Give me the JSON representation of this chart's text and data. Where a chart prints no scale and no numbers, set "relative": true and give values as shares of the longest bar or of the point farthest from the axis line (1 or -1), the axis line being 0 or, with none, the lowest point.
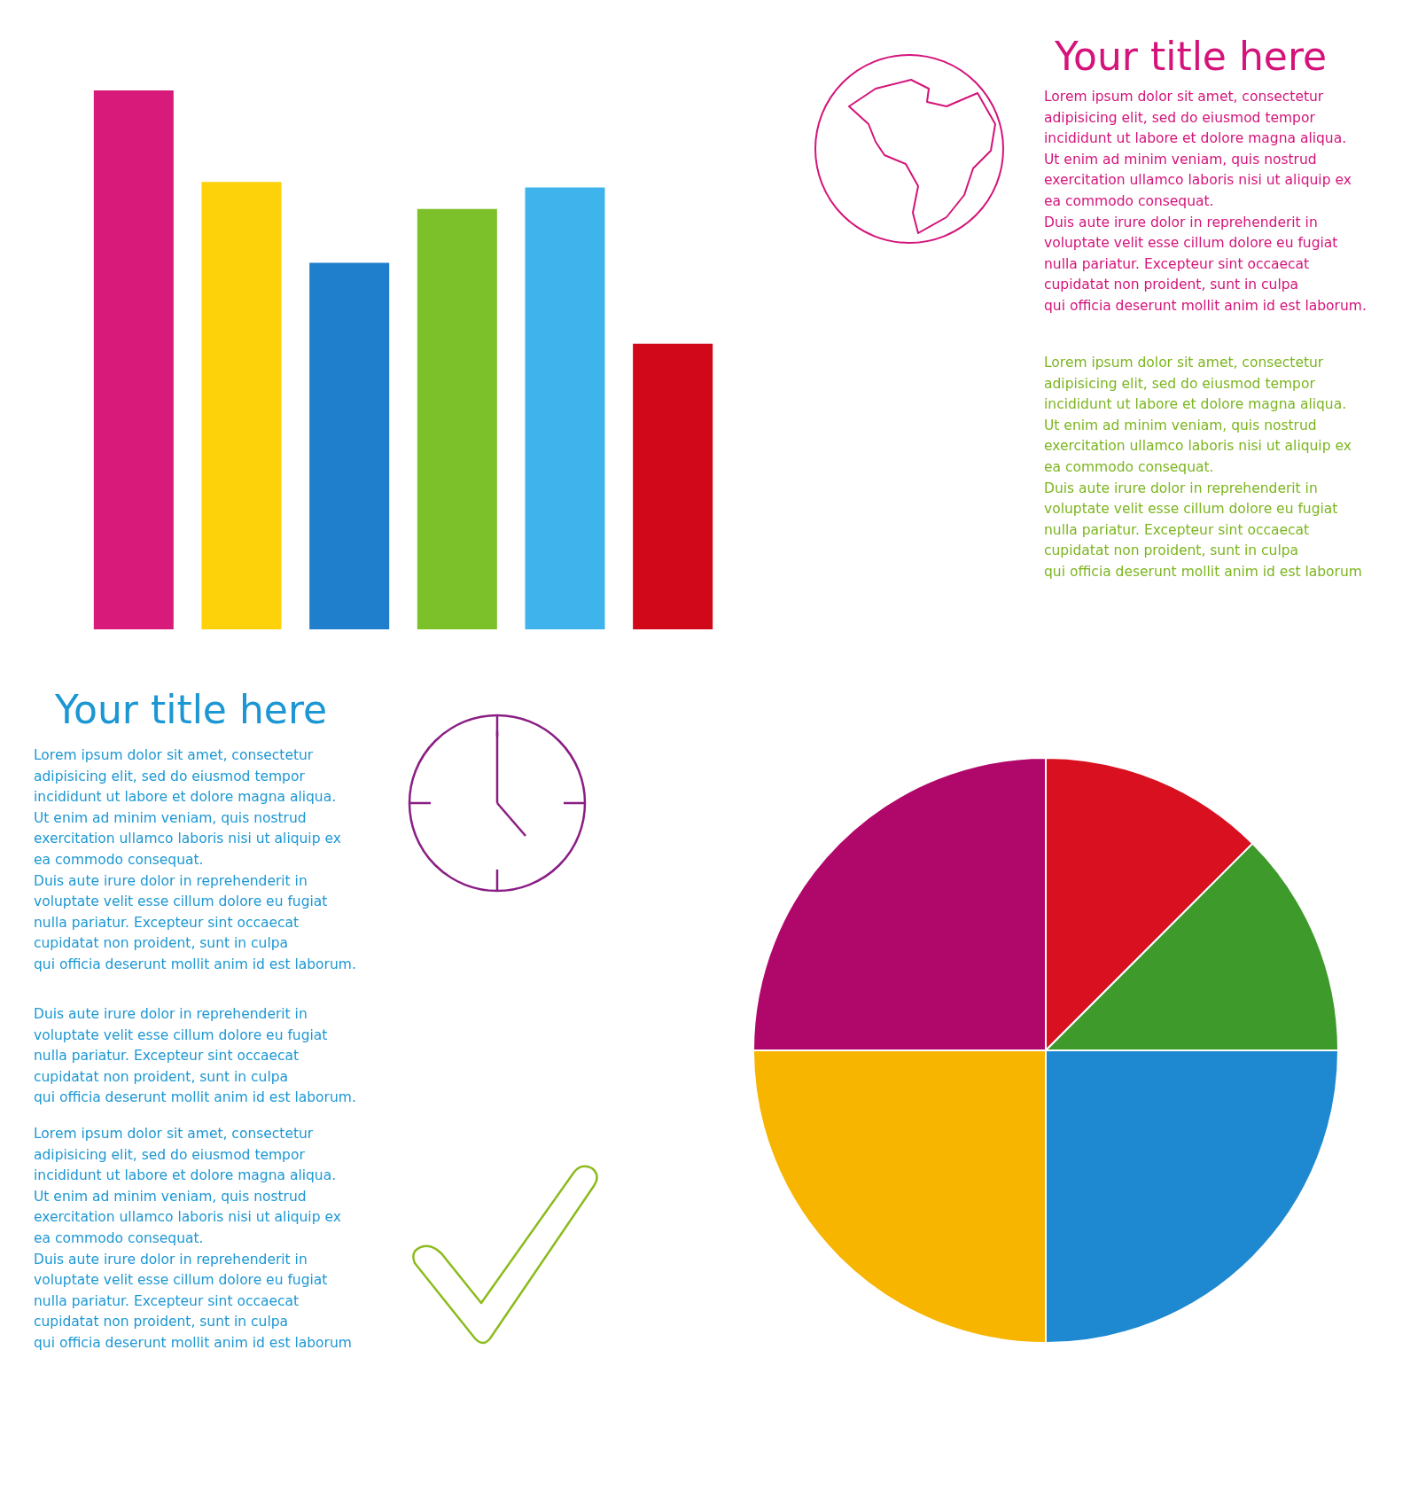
{
  "chart_data": [
    {
      "type": "bar",
      "relative": true,
      "categories": [
        null,
        null,
        null,
        null,
        null,
        null
      ],
      "values": [
        1,
        0.83,
        0.68,
        0.78,
        0.82,
        0.53
      ],
      "colors": [
        "#d81b7a",
        "#fdd20a",
        "#1f7fcc",
        "#7cc02a",
        "#3fb4ec",
        "#d0081a"
      ]
    },
    {
      "type": "other",
      "title": "Your title here",
      "annotations": [
        "Lorem ipsum dolor sit amet, consectetur\nadipisicing elit, sed do eiusmod tempor\nincididunt ut labore et dolore magna aliqua.\nUt enim ad minim veniam, quis nostrud\nexercitation ullamco laboris nisi ut aliquip ex\nea commodo consequat.\nDuis aute irure dolor in reprehenderit in\nvoluptate velit esse cillum dolore eu fugiat\nnulla pariatur. Excepteur sint occaecat\ncupidatat non proident, sunt in culpa\nqui officia deserunt mollit anim id est laborum.",
        "Lorem ipsum dolor sit amet, consectetur\nadipisicing elit, sed do eiusmod tempor\nincididunt ut labore et dolore magna aliqua.\nUt enim ad minim veniam, quis nostrud\nexercitation ullamco laboris nisi ut aliquip ex\nea commodo consequat.\nDuis aute irure dolor in reprehenderit in\nvoluptate velit esse cillum dolore eu fugiat\nnulla pariatur. Excepteur sint occaecat\ncupidatat non proident, sunt in culpa\nqui officia deserunt mollit anim id est laborum"
      ]
    },
    {
      "type": "other",
      "title": "Your title here",
      "annotations": [
        "Lorem ipsum dolor sit amet, consectetur\nadipisicing elit, sed do eiusmod tempor\nincididunt ut labore et dolore magna aliqua.\nUt enim ad minim veniam, quis nostrud\nexercitation ullamco laboris nisi ut aliquip ex\nea commodo consequat.\nDuis aute irure dolor in reprehenderit in\nvoluptate velit esse cillum dolore eu fugiat\nnulla pariatur. Excepteur sint occaecat\ncupidatat non proident, sunt in culpa\nqui officia deserunt mollit anim id est laborum.",
        "Duis aute irure dolor in reprehenderit in\nvoluptate velit esse cillum dolore eu fugiat\nnulla pariatur. Excepteur sint occaecat\ncupidatat non proident, sunt in culpa\nqui officia deserunt mollit anim id est laborum.",
        "Lorem ipsum dolor sit amet, consectetur\nadipisicing elit, sed do eiusmod tempor\nincididunt ut labore et dolore magna aliqua.\nUt enim ad minim veniam, quis nostrud\nexercitation ullamco laboris nisi ut aliquip ex\nea commodo consequat.\nDuis aute irure dolor in reprehenderit in\nvoluptate velit esse cillum dolore eu fugiat\nnulla pariatur. Excepteur sint occaecat\ncupidatat non proident, sunt in culpa\nqui officia deserunt mollit anim id est laborum"
      ]
    },
    {
      "type": "pie",
      "categories": [
        null,
        null,
        null,
        null,
        null
      ],
      "values": [
        12.5,
        12.5,
        25,
        25,
        25
      ],
      "colors": [
        "#d8101f",
        "#3e9a2a",
        "#1e88d0",
        "#f7b500",
        "#b0086a"
      ]
    }
  ]
}
